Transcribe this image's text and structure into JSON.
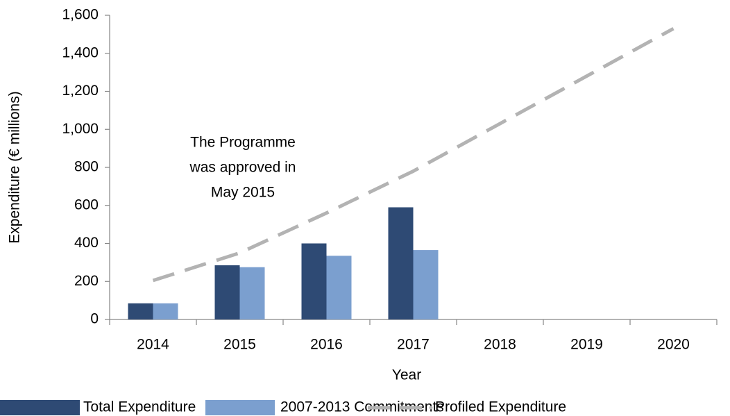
{
  "chart_data": {
    "type": "bar",
    "categories": [
      "2014",
      "2015",
      "2016",
      "2017",
      "2018",
      "2019",
      "2020"
    ],
    "series": [
      {
        "name": "Total Expenditure",
        "color": "#2e4a74",
        "values": [
          85,
          285,
          400,
          590,
          null,
          null,
          null
        ]
      },
      {
        "name": "2007-2013 Commitments",
        "color": "#7b9fcf",
        "values": [
          85,
          275,
          335,
          365,
          null,
          null,
          null
        ]
      },
      {
        "name": "Profiled Expenditure",
        "color": "#b3b3b3",
        "type": "line",
        "dashed": true,
        "values": [
          205,
          350,
          560,
          780,
          1030,
          1280,
          1530
        ]
      }
    ],
    "xlabel": "Year",
    "ylabel": "Expenditure (€ millions)",
    "ylim": [
      0,
      1600
    ],
    "yticks": [
      0,
      200,
      400,
      600,
      800,
      {
        "value": 1000,
        "label": "1,000"
      },
      {
        "value": 1200,
        "label": "1,200"
      },
      {
        "value": 1400,
        "label": "1,400"
      },
      {
        "value": 1600,
        "label": "1,600"
      }
    ],
    "annotation": [
      "The Programme",
      "was approved in",
      "May 2015"
    ],
    "legend": "bottom"
  }
}
